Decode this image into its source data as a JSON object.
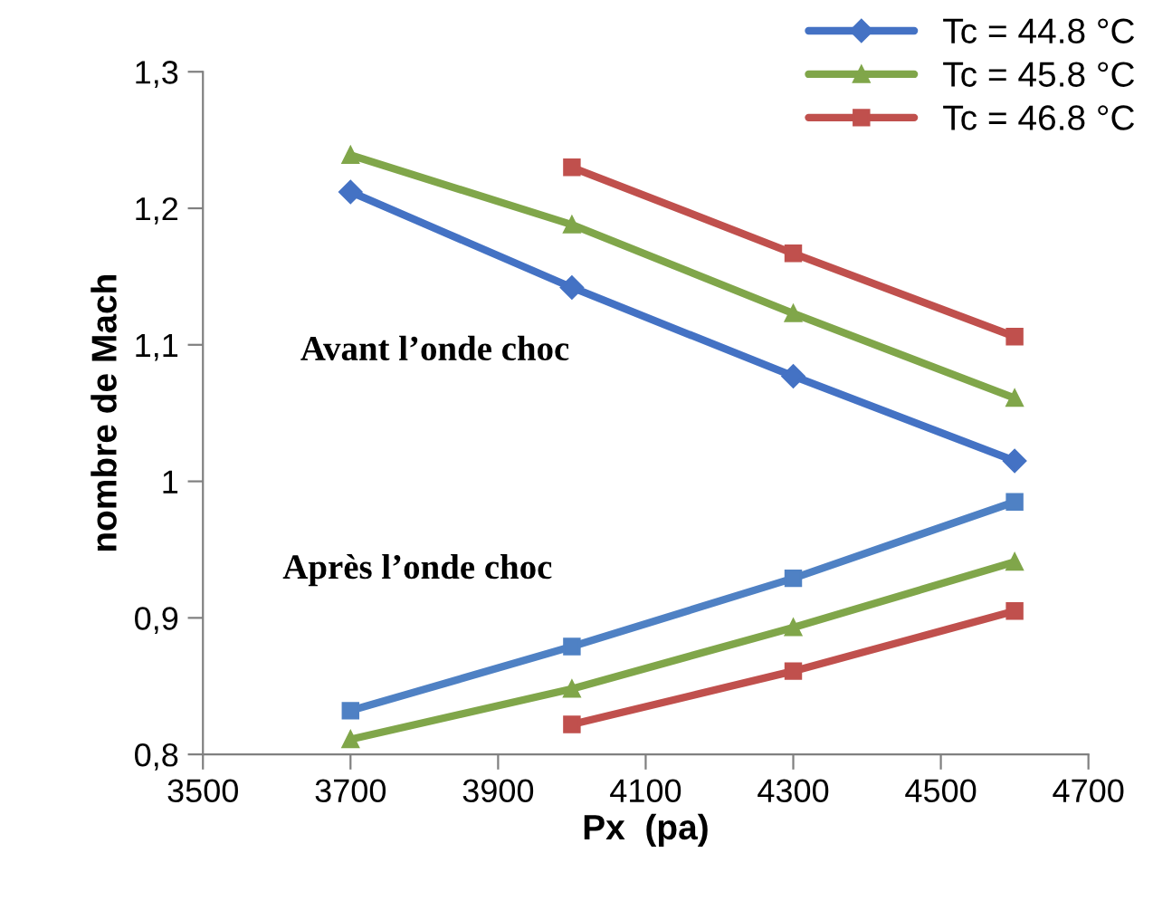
{
  "chart_data": {
    "type": "line",
    "xlabel": "Px  (pa)",
    "ylabel": "nombre de Mach",
    "annotations": [
      "Avant l’onde choc",
      "Après l’onde choc"
    ],
    "xlim": [
      3500,
      4700
    ],
    "xticks": [
      3500,
      3700,
      3900,
      4100,
      4300,
      4500,
      4700
    ],
    "ylim": [
      0.8,
      1.3
    ],
    "yticks": [
      {
        "value": 0.8,
        "label": "0,8"
      },
      {
        "value": 0.9,
        "label": "0,9"
      },
      1,
      {
        "value": 1.1,
        "label": "1,1"
      },
      {
        "value": 1.2,
        "label": "1,2"
      },
      {
        "value": 1.3,
        "label": "1,3"
      }
    ],
    "grid": false,
    "legend": "top right",
    "line_style": "solid",
    "series": [
      {
        "name": "Tc = 44.8 °C",
        "color": "#4472c4",
        "marker": "diamond",
        "x": [
          3700,
          4000,
          4300,
          4600
        ],
        "values": [
          1.212,
          1.142,
          1.077,
          1.015
        ]
      },
      {
        "name": "Tc = 45.8 °C",
        "color": "#80a64a",
        "marker": "triangle",
        "x": [
          3700,
          4000,
          4300,
          4600
        ],
        "values": [
          1.239,
          1.188,
          1.123,
          1.061
        ]
      },
      {
        "name": "Tc = 46.8 °C",
        "color": "#c0504d",
        "marker": "square",
        "x": [
          4000,
          4300,
          4600
        ],
        "values": [
          1.23,
          1.167,
          1.106
        ]
      },
      {
        "color": "#4f81c4",
        "marker": "square",
        "x": [
          3700,
          4000,
          4300,
          4600
        ],
        "values": [
          0.832,
          0.879,
          0.929,
          0.985
        ]
      },
      {
        "color": "#80a64a",
        "marker": "triangle",
        "x": [
          3700,
          4000,
          4300,
          4600
        ],
        "values": [
          0.811,
          0.848,
          0.893,
          0.941
        ]
      },
      {
        "color": "#c0504d",
        "marker": "square",
        "x": [
          4000,
          4300,
          4600
        ],
        "values": [
          0.822,
          0.861,
          0.905
        ]
      }
    ]
  }
}
